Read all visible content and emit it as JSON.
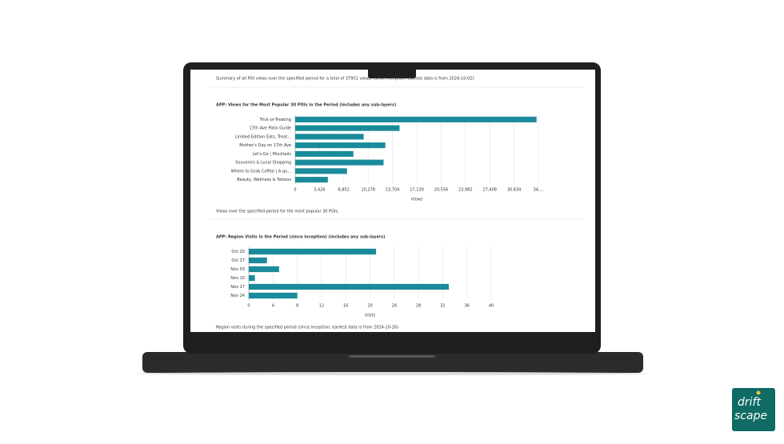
{
  "screen": {
    "summary": "Summary of all POI views over the specified period for a total of 37951 views. (since inception; earliest data is from 2024-10-02)"
  },
  "logo": {
    "lines": [
      "drift",
      "scape"
    ]
  },
  "chart_data": [
    {
      "type": "bar",
      "orientation": "horizontal",
      "title": "APP: Views for the Most Popular 30 POIs in the Period (includes any sub-layers)",
      "caption": "Views over the specified period for the most popular 30 POIs.",
      "categories": [
        "Trick-or-Treating",
        "17th Ave Patio Guide",
        "Limited Edition Eats, Treat...",
        "Mother's Day on 17th Ave",
        "Let's Go | Mocktails",
        "Souvenirs & Local Shopping",
        "Where to Grab Coffee | A qu...",
        "Beauty, Wellness & Tattoos"
      ],
      "values": [
        34000,
        14700,
        9650,
        12700,
        8200,
        12450,
        7300,
        4600
      ],
      "color": "#1a8b9b",
      "xlabel": "Views",
      "xlim": [
        0,
        34260
      ],
      "xticks": [
        0,
        {
          "value": 3426,
          "label": "3,426"
        },
        {
          "value": 6852,
          "label": "6,852"
        },
        {
          "value": 10278,
          "label": "10,278"
        },
        {
          "value": 13704,
          "label": "13,704"
        },
        {
          "value": 17130,
          "label": "17,130"
        },
        {
          "value": 20556,
          "label": "20,556"
        },
        {
          "value": 23982,
          "label": "23,982"
        },
        {
          "value": 27408,
          "label": "27,408"
        },
        {
          "value": 30834,
          "label": "30,834"
        },
        {
          "value": 34260,
          "label": "34,..."
        }
      ],
      "grid": true
    },
    {
      "type": "bar",
      "orientation": "horizontal",
      "title": "APP: Region Visits in the Period (since inception) (includes any sub-layers)",
      "caption": "Region visits during the specified period (since inception; earliest data is from 2024-10-26)",
      "categories": [
        "Oct 20",
        "Oct 27",
        "Nov 03",
        "Nov 10",
        "Nov 17",
        "Nov 24"
      ],
      "values": [
        21,
        3,
        5,
        1,
        33,
        8
      ],
      "color": "#1a8b9b",
      "xlabel": "Visits",
      "xlim": [
        0,
        40
      ],
      "xticks": [
        0,
        4,
        8,
        12,
        16,
        20,
        24,
        28,
        32,
        36,
        40
      ],
      "grid": true
    }
  ]
}
